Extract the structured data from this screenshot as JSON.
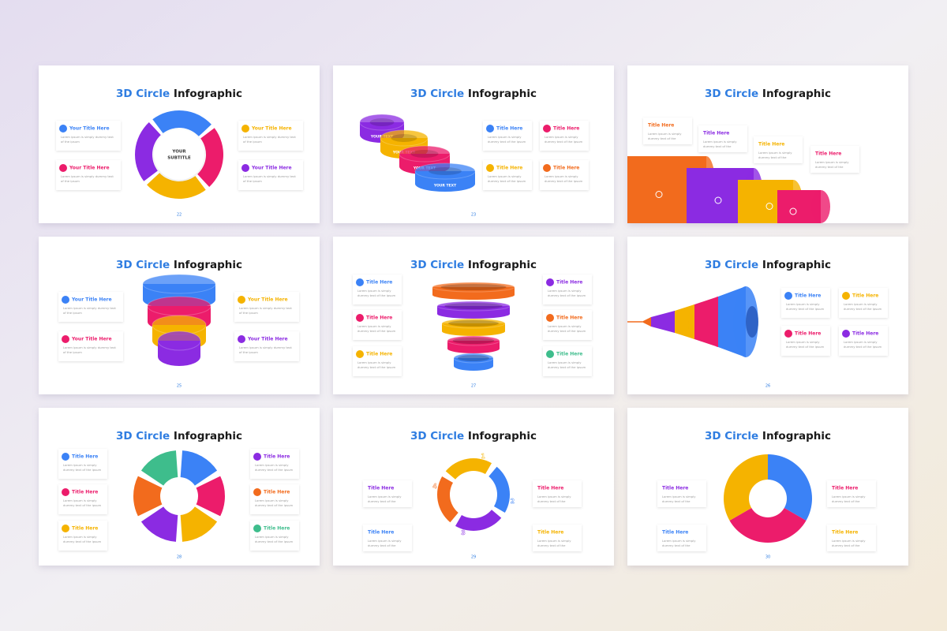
{
  "slides": [
    {
      "title_accent": "3D Circle",
      "title_main": "Infographic",
      "page": "22",
      "labels": [
        "YOUR",
        "SUBTITLE"
      ],
      "items": [
        {
          "title": "Your Title Here",
          "color": "#3b82f6",
          "text": [
            "Lorem ipsum is simply dummy text",
            "of the ipsum"
          ]
        },
        {
          "title": "Your Title Here",
          "color": "#ec1c6b",
          "text": [
            "Lorem ipsum is simply dummy text",
            "of the ipsum"
          ]
        },
        {
          "title": "Your Title Here",
          "color": "#f5b300",
          "text": [
            "Lorem ipsum is simply dummy text",
            "of the ipsum"
          ]
        },
        {
          "title": "Your Title Here",
          "color": "#8b2be2",
          "text": [
            "Lorem ipsum is simply dummy text",
            "of the ipsum"
          ]
        }
      ]
    },
    {
      "title_accent": "3D Circle",
      "title_main": "Infographic",
      "page": "23",
      "labels": [
        "YOUR TEXT",
        "YOUR TEXT",
        "YOUR TEXT",
        "YOUR TEXT"
      ],
      "items": [
        {
          "title": "Title Here",
          "color": "#3b82f6",
          "text": [
            "Lorem ipsum is simply",
            "dummy text of the ipsum"
          ]
        },
        {
          "title": "Title Here",
          "color": "#ec1c6b",
          "text": [
            "Lorem ipsum is simply",
            "dummy text of the ipsum"
          ]
        },
        {
          "title": "Title Here",
          "color": "#f5b300",
          "text": [
            "Lorem ipsum is simply",
            "dummy text of the ipsum"
          ]
        },
        {
          "title": "Title Here",
          "color": "#f26b1d",
          "text": [
            "Lorem ipsum is simply",
            "dummy text of the ipsum"
          ]
        }
      ]
    },
    {
      "title_accent": "3D Circle",
      "title_main": "Infographic",
      "labels": [],
      "items": [
        {
          "title": "Title Here",
          "color": "#f26b1d",
          "text": [
            "Lorem ipsum is simply",
            "dummy text of the"
          ]
        },
        {
          "title": "Title Here",
          "color": "#8b2be2",
          "text": [
            "Lorem ipsum is simply",
            "dummy text of the"
          ]
        },
        {
          "title": "Title Here",
          "color": "#f5b300",
          "text": [
            "Lorem ipsum is simply",
            "dummy text of the"
          ]
        },
        {
          "title": "Title Here",
          "color": "#ec1c6b",
          "text": [
            "Lorem ipsum is simply",
            "dummy text of the"
          ]
        }
      ]
    },
    {
      "title_accent": "3D Circle",
      "title_main": "Infographic",
      "page": "25",
      "labels": [],
      "items": [
        {
          "title": "Your Title Here",
          "color": "#3b82f6",
          "text": [
            "Lorem ipsum is simply dummy text",
            "of the ipsum"
          ]
        },
        {
          "title": "Your Title Here",
          "color": "#ec1c6b",
          "text": [
            "Lorem ipsum is simply dummy text",
            "of the ipsum"
          ]
        },
        {
          "title": "Your Title Here",
          "color": "#f5b300",
          "text": [
            "Lorem ipsum is simply dummy text",
            "of the ipsum"
          ]
        },
        {
          "title": "Your Title Here",
          "color": "#8b2be2",
          "text": [
            "Lorem ipsum is simply dummy text",
            "of the ipsum"
          ]
        }
      ]
    },
    {
      "title_accent": "3D Circle",
      "title_main": "Infographic",
      "page": "27",
      "labels": [],
      "items": [
        {
          "title": "Title Here",
          "color": "#3b82f6",
          "text": [
            "Lorem ipsum is simply",
            "dummy text of the ipsum"
          ]
        },
        {
          "title": "Title Here",
          "color": "#ec1c6b",
          "text": [
            "Lorem ipsum is simply",
            "dummy text of the ipsum"
          ]
        },
        {
          "title": "Title Here",
          "color": "#f5b300",
          "text": [
            "Lorem ipsum is simply",
            "dummy text of the ipsum"
          ]
        },
        {
          "title": "Title Here",
          "color": "#8b2be2",
          "text": [
            "Lorem ipsum is simply",
            "dummy text of the ipsum"
          ]
        },
        {
          "title": "Title Here",
          "color": "#f26b1d",
          "text": [
            "Lorem ipsum is simply",
            "dummy text of the ipsum"
          ]
        },
        {
          "title": "Title Here",
          "color": "#3ebd8c",
          "text": [
            "Lorem ipsum is simply",
            "dummy text of the ipsum"
          ]
        }
      ]
    },
    {
      "title_accent": "3D Circle",
      "title_main": "Infographic",
      "page": "26",
      "labels": [],
      "items": [
        {
          "title": "Title Here",
          "color": "#3b82f6",
          "text": [
            "Lorem ipsum is simply",
            "dummy text of the ipsum"
          ]
        },
        {
          "title": "Title Here",
          "color": "#f5b300",
          "text": [
            "Lorem ipsum is simply",
            "dummy text of the ipsum"
          ]
        },
        {
          "title": "Title Here",
          "color": "#ec1c6b",
          "text": [
            "Lorem ipsum is simply",
            "dummy text of the ipsum"
          ]
        },
        {
          "title": "Title Here",
          "color": "#8b2be2",
          "text": [
            "Lorem ipsum is simply",
            "dummy text of the ipsum"
          ]
        }
      ]
    },
    {
      "title_accent": "3D Circle",
      "title_main": "Infographic",
      "page": "28",
      "labels": [],
      "items": [
        {
          "title": "Title Here",
          "color": "#3b82f6",
          "text": [
            "Lorem ipsum is simply",
            "dummy text of the ipsum"
          ]
        },
        {
          "title": "Title Here",
          "color": "#ec1c6b",
          "text": [
            "Lorem ipsum is simply",
            "dummy text of the ipsum"
          ]
        },
        {
          "title": "Title Here",
          "color": "#f5b300",
          "text": [
            "Lorem ipsum is simply",
            "dummy text of the ipsum"
          ]
        },
        {
          "title": "Title Here",
          "color": "#8b2be2",
          "text": [
            "Lorem ipsum is simply",
            "dummy text of the ipsum"
          ]
        },
        {
          "title": "Title Here",
          "color": "#f26b1d",
          "text": [
            "Lorem ipsum is simply",
            "dummy text of the ipsum"
          ]
        },
        {
          "title": "Title Here",
          "color": "#3ebd8c",
          "text": [
            "Lorem ipsum is simply",
            "dummy text of the ipsum"
          ]
        }
      ]
    },
    {
      "title_accent": "3D Circle",
      "title_main": "Infographic",
      "page": "29",
      "labels": [
        "1",
        "2",
        "3",
        "4"
      ],
      "items": [
        {
          "title": "Title Here",
          "color": "#8b2be2",
          "text": [
            "Lorem ipsum is simply",
            "dummy text of the"
          ]
        },
        {
          "title": "Title Here",
          "color": "#3b82f6",
          "text": [
            "Lorem ipsum is simply",
            "dummy text of the"
          ]
        },
        {
          "title": "Title Here",
          "color": "#ec1c6b",
          "text": [
            "Lorem ipsum is simply",
            "dummy text of the"
          ]
        },
        {
          "title": "Title Here",
          "color": "#f5b300",
          "text": [
            "Lorem ipsum is simply",
            "dummy text of the"
          ]
        }
      ]
    },
    {
      "title_accent": "3D Circle",
      "title_main": "Infographic",
      "page": "30",
      "labels": [],
      "items": [
        {
          "title": "Title Here",
          "color": "#8b2be2",
          "text": [
            "Lorem ipsum is simply",
            "dummy text of the"
          ]
        },
        {
          "title": "Title Here",
          "color": "#3b82f6",
          "text": [
            "Lorem ipsum is simply",
            "dummy text of the"
          ]
        },
        {
          "title": "Title Here",
          "color": "#ec1c6b",
          "text": [
            "Lorem ipsum is simply",
            "dummy text of the"
          ]
        },
        {
          "title": "Title Here",
          "color": "#f5b300",
          "text": [
            "Lorem ipsum is simply",
            "dummy text of the"
          ]
        }
      ]
    }
  ]
}
